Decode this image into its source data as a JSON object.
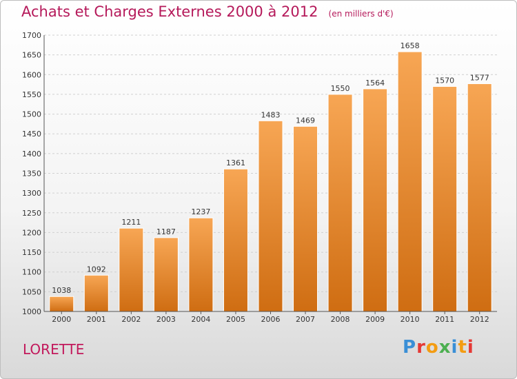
{
  "title": "Achats et Charges Externes 2000 à 2012",
  "unit": "(en milliers d'€)",
  "commune": "LORETTE",
  "brand": {
    "text": "Proxiti",
    "letter_colors": [
      "#3a8fd6",
      "#e53935",
      "#f39c12",
      "#4caf50",
      "#3a8fd6",
      "#f39c12",
      "#e53935"
    ]
  },
  "colors": {
    "bar_top": "#f7a654",
    "bar_bottom": "#cf6d12",
    "title": "#b5195a"
  },
  "chart_data": {
    "type": "bar",
    "title": "Achats et Charges Externes 2000 à 2012",
    "subtitle": "(en milliers d'€)",
    "categories": [
      "2000",
      "2001",
      "2002",
      "2003",
      "2004",
      "2005",
      "2006",
      "2007",
      "2008",
      "2009",
      "2010",
      "2011",
      "2012"
    ],
    "values": [
      1038,
      1092,
      1211,
      1187,
      1237,
      1361,
      1483,
      1469,
      1550,
      1564,
      1658,
      1570,
      1577
    ],
    "yticks": [
      1000,
      1050,
      1100,
      1150,
      1200,
      1250,
      1300,
      1350,
      1400,
      1450,
      1500,
      1550,
      1600,
      1650,
      1700
    ],
    "ylim": [
      1000,
      1700
    ],
    "grid": true,
    "xlabel": "",
    "ylabel": ""
  }
}
